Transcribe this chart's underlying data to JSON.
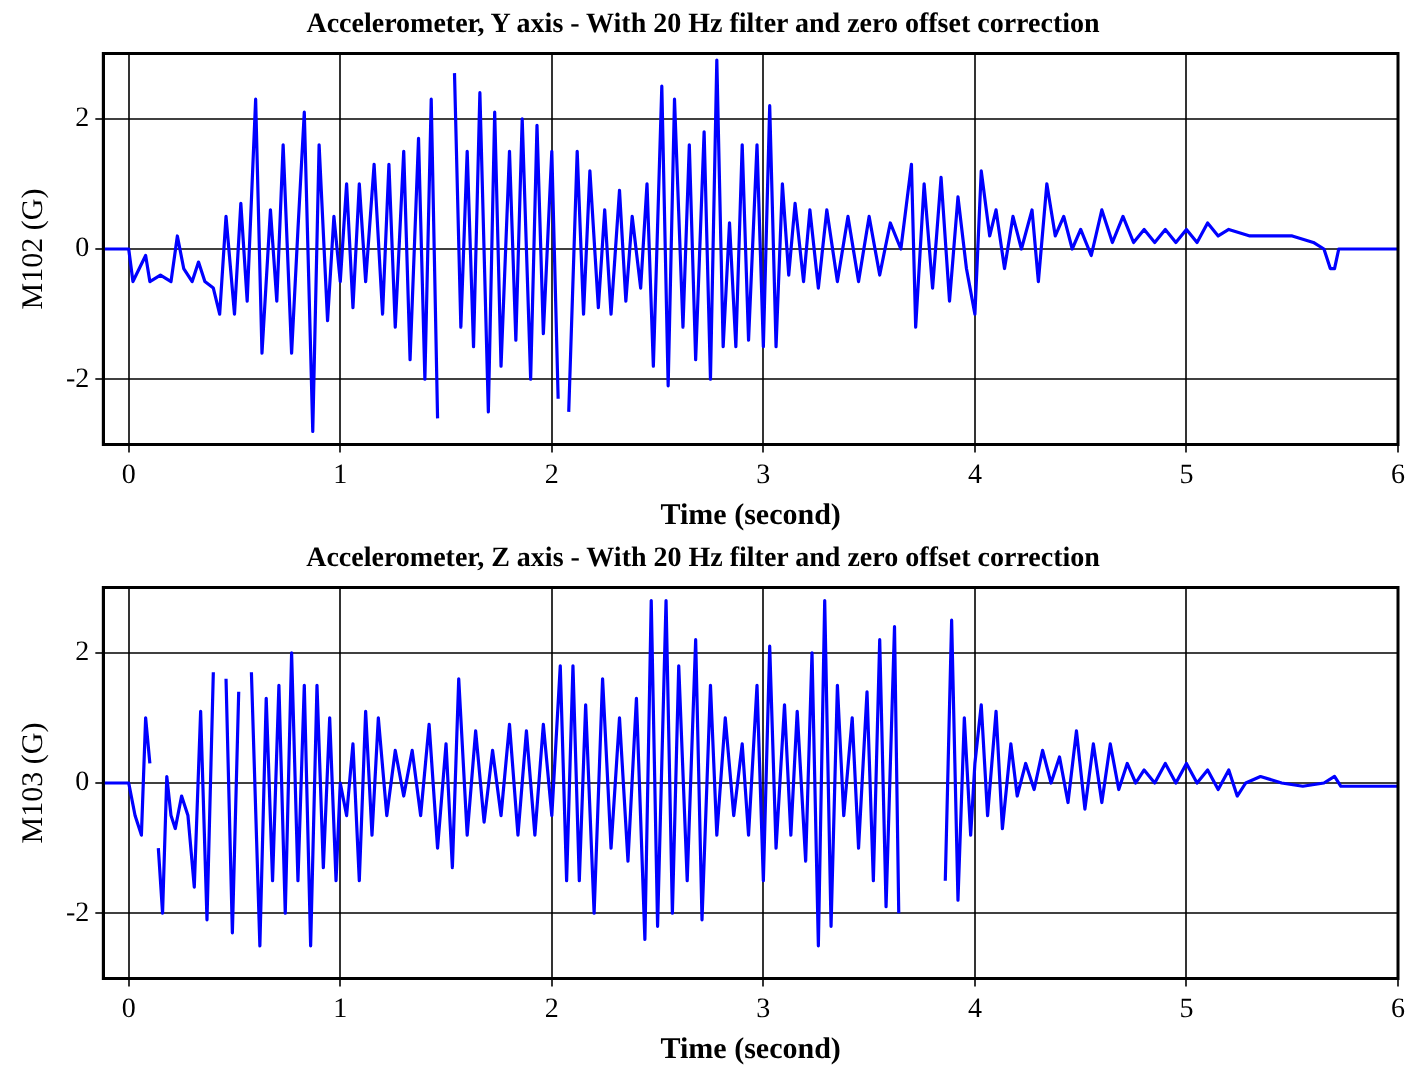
{
  "chart_data": [
    {
      "type": "line",
      "title": "Accelerometer, Y axis - With 20 Hz filter and zero offset correction",
      "xlabel": "Time (second)",
      "ylabel": "M102 (G)",
      "xlim": [
        -0.12,
        6
      ],
      "xticks": [
        0,
        1,
        2,
        3,
        4,
        5,
        6
      ],
      "ylim": [
        -3,
        3
      ],
      "yticks": [
        -2,
        0,
        2
      ],
      "grid": true,
      "legend": false,
      "marker": "none",
      "line_style": "solid",
      "series": [
        {
          "color": "#0000ff",
          "x": [
            -0.12,
            0,
            0.02,
            0.05,
            0.08,
            0.1,
            0.15,
            0.2,
            0.23,
            0.26,
            0.3,
            0.33,
            0.36,
            0.4,
            0.43,
            0.46,
            0.5,
            0.53,
            0.56,
            0.6,
            0.63,
            0.67,
            0.7,
            0.73,
            0.77,
            0.8,
            0.83,
            0.87,
            0.9,
            0.94,
            0.97,
            1.0,
            1.03,
            1.06,
            1.09,
            1.12,
            1.16,
            1.2,
            1.23,
            1.26,
            1.3,
            1.33,
            1.37,
            1.4,
            1.43,
            1.46,
            1.48,
            1.51,
            1.54,
            1.57,
            1.6,
            1.63,
            1.66,
            1.7,
            1.73,
            1.76,
            1.8,
            1.83,
            1.86,
            1.9,
            1.93,
            1.96,
            2.0,
            2.03,
            2.05,
            2.08,
            2.12,
            2.15,
            2.18,
            2.22,
            2.25,
            2.28,
            2.32,
            2.35,
            2.38,
            2.42,
            2.45,
            2.48,
            2.52,
            2.55,
            2.58,
            2.62,
            2.65,
            2.68,
            2.72,
            2.75,
            2.78,
            2.81,
            2.84,
            2.87,
            2.9,
            2.93,
            2.97,
            3.0,
            3.03,
            3.06,
            3.09,
            3.12,
            3.15,
            3.19,
            3.22,
            3.26,
            3.3,
            3.35,
            3.4,
            3.45,
            3.5,
            3.55,
            3.6,
            3.65,
            3.7,
            3.72,
            3.76,
            3.8,
            3.84,
            3.88,
            3.92,
            3.96,
            4.0,
            4.03,
            4.07,
            4.1,
            4.14,
            4.18,
            4.22,
            4.27,
            4.3,
            4.34,
            4.38,
            4.42,
            4.46,
            4.5,
            4.55,
            4.6,
            4.65,
            4.7,
            4.75,
            4.8,
            4.85,
            4.9,
            4.95,
            5.0,
            5.05,
            5.1,
            5.15,
            5.2,
            5.3,
            5.5,
            5.6,
            5.65,
            5.68,
            5.7,
            5.72,
            6
          ],
          "values": [
            0,
            0,
            -0.5,
            -0.3,
            -0.1,
            -0.5,
            -0.4,
            -0.5,
            0.2,
            -0.3,
            -0.5,
            -0.2,
            -0.5,
            -0.6,
            -1.0,
            0.5,
            -1.0,
            0.7,
            -0.8,
            2.3,
            -1.6,
            0.6,
            -0.8,
            1.6,
            -1.6,
            0.3,
            2.1,
            -2.8,
            1.6,
            -1.1,
            0.5,
            -0.5,
            1.0,
            -0.9,
            1.0,
            -0.5,
            1.3,
            -1.0,
            1.3,
            -1.2,
            1.5,
            -1.7,
            1.7,
            -2.0,
            2.3,
            -2.6,
            null,
            null,
            2.7,
            -1.2,
            1.5,
            -1.5,
            2.4,
            -2.5,
            2.1,
            -1.8,
            1.5,
            -1.4,
            2.0,
            -2.0,
            1.9,
            -1.3,
            1.5,
            -2.3,
            null,
            -2.5,
            1.5,
            -1.0,
            1.2,
            -0.9,
            0.6,
            -1.0,
            0.9,
            -0.8,
            0.5,
            -0.6,
            1.0,
            -1.8,
            2.5,
            -2.1,
            2.3,
            -1.2,
            1.6,
            -1.7,
            1.8,
            -2.0,
            2.9,
            -1.5,
            0.4,
            -1.5,
            1.6,
            -1.4,
            1.6,
            -1.5,
            2.2,
            -1.5,
            1.0,
            -0.4,
            0.7,
            -0.5,
            0.6,
            -0.6,
            0.6,
            -0.5,
            0.5,
            -0.5,
            0.5,
            -0.4,
            0.4,
            0,
            1.3,
            -1.2,
            1.0,
            -0.6,
            1.1,
            -0.8,
            0.8,
            -0.3,
            -1.0,
            1.2,
            0.2,
            0.6,
            -0.3,
            0.5,
            0,
            0.6,
            -0.5,
            1.0,
            0.2,
            0.5,
            0,
            0.3,
            -0.1,
            0.6,
            0.1,
            0.5,
            0.1,
            0.3,
            0.1,
            0.3,
            0.1,
            0.3,
            0.1,
            0.4,
            0.2,
            0.3,
            0.2,
            0.2,
            0.1,
            0,
            -0.3,
            -0.3,
            0,
            0
          ]
        }
      ]
    },
    {
      "type": "line",
      "title": "Accelerometer, Z axis - With 20 Hz filter and zero offset correction",
      "xlabel": "Time (second)",
      "ylabel": "M103 (G)",
      "xlim": [
        -0.12,
        6
      ],
      "xticks": [
        0,
        1,
        2,
        3,
        4,
        5,
        6
      ],
      "ylim": [
        -3,
        3
      ],
      "yticks": [
        -2,
        0,
        2
      ],
      "grid": true,
      "legend": false,
      "marker": "none",
      "line_style": "solid",
      "series": [
        {
          "color": "#0000ff",
          "x": [
            -0.12,
            0,
            0.03,
            0.06,
            0.08,
            0.1,
            0.12,
            0.14,
            0.16,
            0.18,
            0.2,
            0.22,
            0.25,
            0.28,
            0.31,
            0.34,
            0.37,
            0.4,
            0.43,
            0.46,
            0.49,
            0.52,
            0.55,
            0.58,
            0.62,
            0.65,
            0.68,
            0.71,
            0.74,
            0.77,
            0.8,
            0.83,
            0.86,
            0.89,
            0.92,
            0.95,
            0.98,
            1.0,
            1.03,
            1.06,
            1.09,
            1.12,
            1.15,
            1.18,
            1.22,
            1.26,
            1.3,
            1.34,
            1.38,
            1.42,
            1.46,
            1.5,
            1.53,
            1.56,
            1.6,
            1.64,
            1.68,
            1.72,
            1.76,
            1.8,
            1.84,
            1.88,
            1.92,
            1.96,
            2.0,
            2.04,
            2.07,
            2.1,
            2.13,
            2.16,
            2.2,
            2.24,
            2.28,
            2.32,
            2.36,
            2.4,
            2.44,
            2.47,
            2.5,
            2.54,
            2.57,
            2.6,
            2.64,
            2.68,
            2.71,
            2.75,
            2.78,
            2.82,
            2.86,
            2.9,
            2.93,
            2.97,
            3.0,
            3.03,
            3.06,
            3.1,
            3.13,
            3.16,
            3.2,
            3.23,
            3.26,
            3.29,
            3.32,
            3.35,
            3.38,
            3.42,
            3.45,
            3.49,
            3.52,
            3.55,
            3.58,
            3.62,
            3.64,
            3.66,
            3.68,
            3.71,
            3.74,
            3.77,
            3.8,
            3.83,
            3.86,
            3.89,
            3.92,
            3.95,
            3.98,
            4.0,
            4.03,
            4.06,
            4.1,
            4.13,
            4.17,
            4.2,
            4.24,
            4.28,
            4.32,
            4.36,
            4.4,
            4.44,
            4.48,
            4.52,
            4.56,
            4.6,
            4.64,
            4.68,
            4.72,
            4.76,
            4.8,
            4.85,
            4.9,
            4.95,
            5.0,
            5.05,
            5.1,
            5.15,
            5.2,
            5.24,
            5.28,
            5.35,
            5.45,
            5.55,
            5.65,
            5.7,
            5.73,
            6
          ],
          "values": [
            0,
            0,
            -0.5,
            -0.8,
            1.0,
            0.3,
            null,
            -1.0,
            -2.0,
            0.1,
            -0.5,
            -0.7,
            -0.2,
            -0.5,
            -1.6,
            1.1,
            -2.1,
            1.7,
            null,
            1.6,
            -2.3,
            1.4,
            null,
            1.7,
            -2.5,
            1.3,
            -1.5,
            1.5,
            -2.0,
            2.0,
            -1.5,
            1.5,
            -2.5,
            1.5,
            -1.3,
            1.0,
            -1.5,
            0,
            -0.5,
            0.6,
            -1.5,
            1.1,
            -0.8,
            1.0,
            -0.5,
            0.5,
            -0.2,
            0.5,
            -0.5,
            0.9,
            -1.0,
            0.6,
            -1.3,
            1.6,
            -0.8,
            0.8,
            -0.6,
            0.5,
            -0.5,
            0.9,
            -0.8,
            0.8,
            -0.8,
            0.9,
            -0.5,
            1.8,
            -1.5,
            1.8,
            -1.5,
            1.2,
            -2.0,
            1.6,
            -1.0,
            1.0,
            -1.2,
            1.3,
            -2.4,
            2.8,
            -2.2,
            2.8,
            -2.0,
            1.8,
            -1.5,
            2.2,
            -2.1,
            1.5,
            -0.8,
            1.0,
            -0.5,
            0.6,
            -0.8,
            1.5,
            -1.5,
            2.1,
            -1.0,
            1.2,
            -0.8,
            1.1,
            -1.2,
            2.0,
            -2.5,
            2.8,
            -2.2,
            1.5,
            -0.5,
            1.0,
            -1.0,
            1.4,
            -1.5,
            2.2,
            -1.9,
            2.4,
            -2.0,
            null,
            null,
            null,
            null,
            null,
            null,
            null,
            -1.5,
            2.5,
            -1.8,
            1.0,
            -0.8,
            0.3,
            1.2,
            -0.5,
            1.1,
            -0.7,
            0.6,
            -0.2,
            0.3,
            -0.1,
            0.5,
            0,
            0.4,
            -0.3,
            0.8,
            -0.4,
            0.6,
            -0.3,
            0.6,
            -0.1,
            0.3,
            0,
            0.2,
            0,
            0.3,
            0,
            0.3,
            0,
            0.2,
            -0.1,
            0.2,
            -0.2,
            0,
            0.1,
            0,
            -0.05,
            0,
            0.1,
            -0.05,
            -0.05
          ]
        }
      ]
    }
  ]
}
